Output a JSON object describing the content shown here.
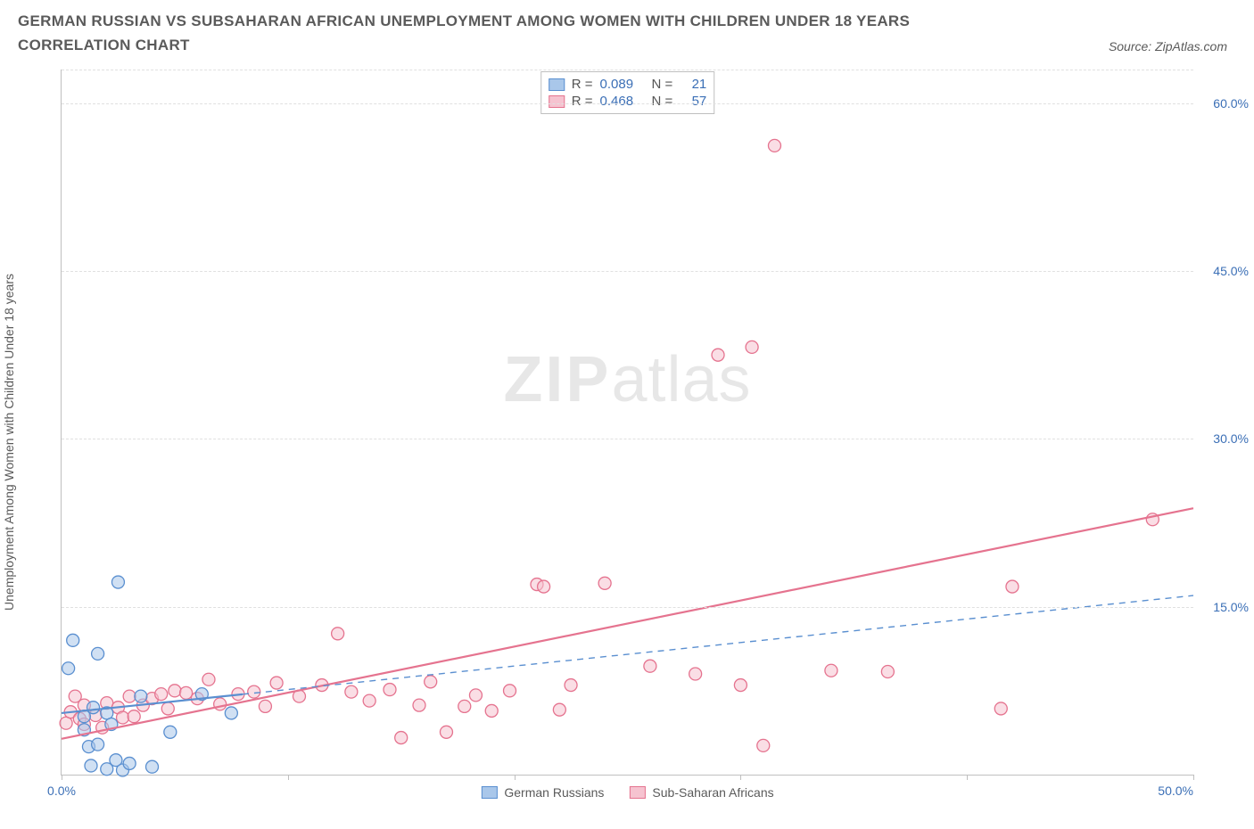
{
  "title": "GERMAN RUSSIAN VS SUBSAHARAN AFRICAN UNEMPLOYMENT AMONG WOMEN WITH CHILDREN UNDER 18 YEARS CORRELATION CHART",
  "source_label": "Source: ZipAtlas.com",
  "y_axis_label": "Unemployment Among Women with Children Under 18 years",
  "watermark_a": "ZIP",
  "watermark_b": "atlas",
  "chart": {
    "type": "scatter",
    "background_color": "#ffffff",
    "grid_color": "#e0e0e0",
    "axis_color": "#bfbfbf",
    "tick_label_color": "#3b6fb6",
    "title_color": "#5a5a5a",
    "xlim": [
      0,
      50
    ],
    "ylim": [
      0,
      63
    ],
    "x_ticks": [
      0,
      10,
      20,
      30,
      40,
      50
    ],
    "x_tick_labels": {
      "0": "0.0%",
      "50": "50.0%"
    },
    "y_ticks": [
      15,
      30,
      45,
      60
    ],
    "y_tick_labels": {
      "15": "15.0%",
      "30": "30.0%",
      "45": "45.0%",
      "60": "60.0%"
    },
    "marker_radius": 7,
    "marker_opacity": 0.55,
    "line_width_solid": 2.2,
    "line_width_dashed": 1.4
  },
  "series": {
    "german_russians": {
      "label": "German Russians",
      "fill": "#a9c7ea",
      "stroke": "#5a8fd0",
      "trend_color": "#5a8fd0",
      "trend_dashed_beyond_x": 8,
      "trend": {
        "x1": 0,
        "y1": 5.5,
        "x2": 50,
        "y2": 16.0
      },
      "stats": {
        "R_label": "R =",
        "R": "0.089",
        "N_label": "N =",
        "N": "21"
      },
      "points": [
        [
          0.3,
          9.5
        ],
        [
          0.5,
          12.0
        ],
        [
          1.0,
          5.2
        ],
        [
          1.0,
          4.0
        ],
        [
          1.2,
          2.5
        ],
        [
          1.3,
          0.8
        ],
        [
          1.4,
          6.0
        ],
        [
          1.6,
          10.8
        ],
        [
          1.6,
          2.7
        ],
        [
          2.0,
          0.5
        ],
        [
          2.0,
          5.5
        ],
        [
          2.2,
          4.5
        ],
        [
          2.4,
          1.3
        ],
        [
          2.5,
          17.2
        ],
        [
          2.7,
          0.4
        ],
        [
          3.0,
          1.0
        ],
        [
          3.5,
          7.0
        ],
        [
          4.0,
          0.7
        ],
        [
          4.8,
          3.8
        ],
        [
          6.2,
          7.2
        ],
        [
          7.5,
          5.5
        ]
      ]
    },
    "subsaharan_africans": {
      "label": "Sub-Saharan Africans",
      "fill": "#f6c3d0",
      "stroke": "#e5738f",
      "trend_color": "#e5738f",
      "trend_dashed_beyond_x": null,
      "trend": {
        "x1": 0,
        "y1": 3.2,
        "x2": 50,
        "y2": 23.8
      },
      "stats": {
        "R_label": "R =",
        "R": "0.468",
        "N_label": "N =",
        "N": "57"
      },
      "points": [
        [
          0.2,
          4.6
        ],
        [
          0.4,
          5.6
        ],
        [
          0.6,
          7.0
        ],
        [
          0.8,
          5.0
        ],
        [
          1.0,
          6.2
        ],
        [
          1.0,
          4.5
        ],
        [
          1.5,
          5.3
        ],
        [
          1.8,
          4.2
        ],
        [
          2.0,
          6.4
        ],
        [
          2.5,
          6.0
        ],
        [
          2.7,
          5.1
        ],
        [
          3.0,
          7.0
        ],
        [
          3.2,
          5.2
        ],
        [
          3.6,
          6.2
        ],
        [
          4.0,
          6.8
        ],
        [
          4.4,
          7.2
        ],
        [
          4.7,
          5.9
        ],
        [
          5.0,
          7.5
        ],
        [
          5.5,
          7.3
        ],
        [
          6.0,
          6.8
        ],
        [
          6.5,
          8.5
        ],
        [
          7.0,
          6.3
        ],
        [
          7.8,
          7.2
        ],
        [
          8.5,
          7.4
        ],
        [
          9.0,
          6.1
        ],
        [
          9.5,
          8.2
        ],
        [
          10.5,
          7.0
        ],
        [
          11.5,
          8.0
        ],
        [
          12.2,
          12.6
        ],
        [
          12.8,
          7.4
        ],
        [
          13.6,
          6.6
        ],
        [
          14.5,
          7.6
        ],
        [
          15.0,
          3.3
        ],
        [
          15.8,
          6.2
        ],
        [
          16.3,
          8.3
        ],
        [
          17.0,
          3.8
        ],
        [
          17.8,
          6.1
        ],
        [
          18.3,
          7.1
        ],
        [
          19.0,
          5.7
        ],
        [
          19.8,
          7.5
        ],
        [
          21.0,
          17.0
        ],
        [
          21.3,
          16.8
        ],
        [
          22.0,
          5.8
        ],
        [
          22.5,
          8.0
        ],
        [
          24.0,
          17.1
        ],
        [
          26.0,
          9.7
        ],
        [
          28.0,
          9.0
        ],
        [
          29.0,
          37.5
        ],
        [
          30.0,
          8.0
        ],
        [
          30.5,
          38.2
        ],
        [
          31.0,
          2.6
        ],
        [
          31.5,
          56.2
        ],
        [
          34.0,
          9.3
        ],
        [
          36.5,
          9.2
        ],
        [
          41.5,
          5.9
        ],
        [
          42.0,
          16.8
        ],
        [
          48.2,
          22.8
        ]
      ]
    }
  }
}
